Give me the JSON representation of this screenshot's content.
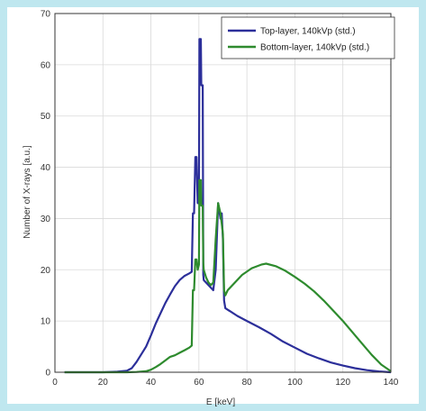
{
  "chart_data": {
    "type": "line",
    "title": "",
    "xlabel": "E [keV]",
    "ylabel": "Number of X-rays [a.u.]",
    "xlim": [
      0,
      140
    ],
    "ylim": [
      0,
      70
    ],
    "grid": true,
    "legend_position": "top-right",
    "x_ticks": [
      0,
      20,
      40,
      60,
      80,
      100,
      120,
      140
    ],
    "y_ticks": [
      0,
      10,
      20,
      30,
      40,
      50,
      60,
      70
    ],
    "series": [
      {
        "name": "Top-layer, 140kVp (std.)",
        "color": "#2c2f9a",
        "points": [
          [
            4,
            0
          ],
          [
            20,
            0
          ],
          [
            26,
            0.1
          ],
          [
            30,
            0.3
          ],
          [
            32,
            0.8
          ],
          [
            34,
            2
          ],
          [
            36,
            3.5
          ],
          [
            38,
            5
          ],
          [
            40,
            7.2
          ],
          [
            42,
            9.5
          ],
          [
            44,
            11.5
          ],
          [
            46,
            13.5
          ],
          [
            48,
            15.2
          ],
          [
            50,
            16.8
          ],
          [
            52,
            18
          ],
          [
            54,
            18.8
          ],
          [
            56,
            19.3
          ],
          [
            57,
            19.6
          ],
          [
            57.5,
            31
          ],
          [
            58,
            31
          ],
          [
            58.5,
            42
          ],
          [
            59,
            42
          ],
          [
            59.5,
            33
          ],
          [
            60,
            33
          ],
          [
            60.2,
            65
          ],
          [
            60.8,
            65
          ],
          [
            61,
            56
          ],
          [
            61.6,
            56
          ],
          [
            61.8,
            19
          ],
          [
            62,
            18
          ],
          [
            63,
            17.5
          ],
          [
            64,
            17
          ],
          [
            65,
            16.5
          ],
          [
            66,
            16
          ],
          [
            67,
            20
          ],
          [
            68,
            33
          ],
          [
            69,
            30
          ],
          [
            69.5,
            31
          ],
          [
            70,
            26
          ],
          [
            70.5,
            14
          ],
          [
            71,
            12.5
          ],
          [
            76,
            11
          ],
          [
            80,
            10
          ],
          [
            85,
            8.8
          ],
          [
            90,
            7.5
          ],
          [
            95,
            6
          ],
          [
            100,
            4.8
          ],
          [
            105,
            3.6
          ],
          [
            110,
            2.7
          ],
          [
            115,
            1.9
          ],
          [
            120,
            1.3
          ],
          [
            125,
            0.8
          ],
          [
            130,
            0.4
          ],
          [
            135,
            0.15
          ],
          [
            140,
            0
          ]
        ]
      },
      {
        "name": "Bottom-layer, 140kVp (std.)",
        "color": "#2e8b2e",
        "points": [
          [
            4,
            0
          ],
          [
            30,
            0
          ],
          [
            34,
            0.05
          ],
          [
            38,
            0.2
          ],
          [
            40,
            0.5
          ],
          [
            42,
            1
          ],
          [
            44,
            1.6
          ],
          [
            46,
            2.3
          ],
          [
            48,
            3
          ],
          [
            50,
            3.3
          ],
          [
            52,
            3.8
          ],
          [
            54,
            4.3
          ],
          [
            56,
            4.8
          ],
          [
            57,
            5.2
          ],
          [
            57.5,
            16
          ],
          [
            58,
            16
          ],
          [
            58.5,
            22
          ],
          [
            59,
            22
          ],
          [
            59.5,
            20
          ],
          [
            60,
            21
          ],
          [
            60.2,
            37.5
          ],
          [
            60.8,
            37.5
          ],
          [
            61,
            32.5
          ],
          [
            61.6,
            32.5
          ],
          [
            61.8,
            21.5
          ],
          [
            62,
            20
          ],
          [
            63,
            18.5
          ],
          [
            64,
            17.5
          ],
          [
            65,
            17
          ],
          [
            66,
            17.5
          ],
          [
            67,
            26
          ],
          [
            68,
            33
          ],
          [
            69,
            31
          ],
          [
            69.5,
            29
          ],
          [
            70,
            27
          ],
          [
            70.5,
            16
          ],
          [
            71,
            15
          ],
          [
            72,
            16
          ],
          [
            75,
            17.5
          ],
          [
            78,
            19
          ],
          [
            82,
            20.3
          ],
          [
            86,
            21
          ],
          [
            88,
            21.2
          ],
          [
            92,
            20.7
          ],
          [
            96,
            19.8
          ],
          [
            100,
            18.6
          ],
          [
            104,
            17.3
          ],
          [
            108,
            15.8
          ],
          [
            112,
            14
          ],
          [
            116,
            12
          ],
          [
            120,
            10
          ],
          [
            124,
            7.8
          ],
          [
            128,
            5.6
          ],
          [
            132,
            3.4
          ],
          [
            136,
            1.5
          ],
          [
            140,
            0.2
          ]
        ]
      }
    ]
  }
}
